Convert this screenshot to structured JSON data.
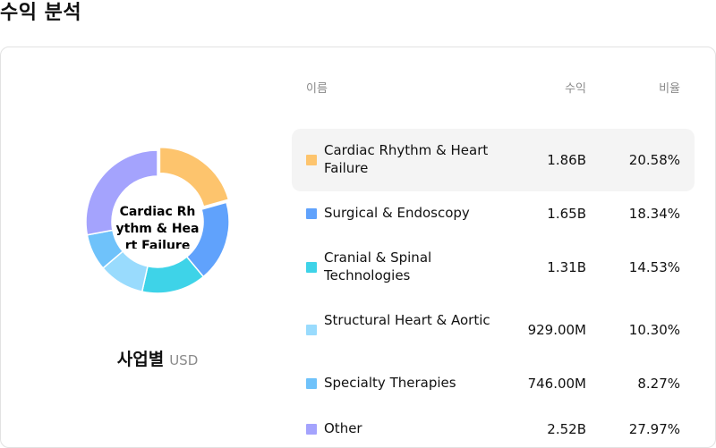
{
  "page": {
    "title": "수익 분석"
  },
  "table": {
    "headers": {
      "name": "이름",
      "revenue": "수익",
      "share": "비율"
    },
    "rows": [
      {
        "name": "Cardiac Rhythm & Heart Failure",
        "revenue": "1.86B",
        "share": "20.58%",
        "color": "#fdc46d",
        "highlighted": true
      },
      {
        "name": "Surgical & Endoscopy",
        "revenue": "1.65B",
        "share": "18.34%",
        "color": "#60a2fc"
      },
      {
        "name": "Cranial & Spinal Technologies",
        "revenue": "1.31B",
        "share": "14.53%",
        "color": "#3ed3e8"
      },
      {
        "name": "Structural Heart & Aortic",
        "revenue": "929.00M",
        "share": "10.30%",
        "color": "#99dbfd"
      },
      {
        "name": "Specialty Therapies",
        "revenue": "746.00M",
        "share": "8.27%",
        "color": "#6fc2fa"
      },
      {
        "name": "Other",
        "revenue": "2.52B",
        "share": "27.97%",
        "color": "#a4a3fd"
      }
    ]
  },
  "chart_data": {
    "type": "pie",
    "variant": "donut",
    "title": "사업별",
    "unit": "USD",
    "center_label": "Cardiac Rhythm & Heart Failure",
    "highlighted_slice": "Cardiac Rhythm & Heart Failure",
    "categories": [
      "Cardiac Rhythm & Heart Failure",
      "Surgical & Endoscopy",
      "Cranial & Spinal Technologies",
      "Structural Heart & Aortic",
      "Specialty Therapies",
      "Other"
    ],
    "values": [
      1.86,
      1.65,
      1.31,
      0.929,
      0.746,
      2.52
    ],
    "value_units": "billion USD",
    "shares_percent": [
      20.58,
      18.34,
      14.53,
      10.3,
      8.27,
      27.97
    ],
    "colors": [
      "#fdc46d",
      "#60a2fc",
      "#3ed3e8",
      "#99dbfd",
      "#6fc2fa",
      "#a4a3fd"
    ]
  }
}
